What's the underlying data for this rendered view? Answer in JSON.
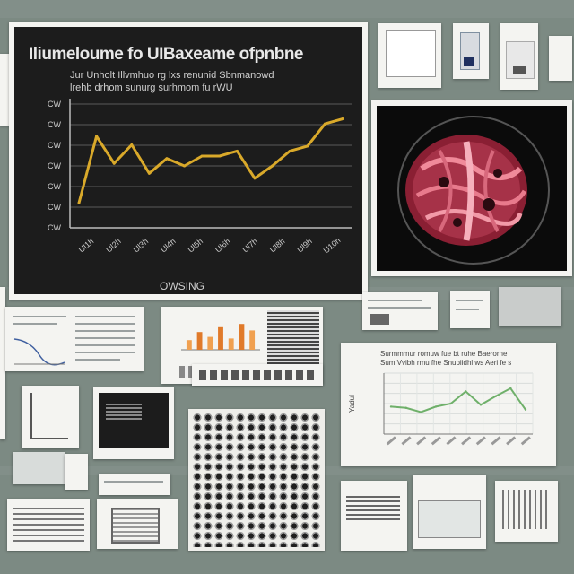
{
  "main_chart": {
    "title": "Iliumeloume fo UIBaxeame ofpnbne",
    "subtitle_line1": "Jur Unholt Illvmhuo rg lxs renunid Sbnmanowd",
    "subtitle_line2": "lrehb drhom sunurg surhmom fu rWU",
    "y_ticks": [
      "CW",
      "CW",
      "CW",
      "CW",
      "CW",
      "CW",
      "CW"
    ],
    "x_ticks": [
      "Ul1h",
      "Ul2h",
      "Ul3h",
      "Ul4h",
      "Ul5h",
      "Ul6h",
      "Ul7h",
      "Ul8h",
      "Ul9h",
      "U10h"
    ],
    "xlabel": "OWSING",
    "line_color": "#d9a92a"
  },
  "chart_data": [
    {
      "type": "line",
      "title": "Iliumeloume fo UIBaxeame ofpnbne",
      "xlabel": "OWSING",
      "ylabel": "",
      "x": [
        1,
        2,
        3,
        4,
        5,
        6,
        7,
        8,
        9,
        10,
        11,
        12,
        13,
        14,
        15,
        16
      ],
      "series": [
        {
          "values": [
            20,
            74,
            52,
            67,
            44,
            56,
            50,
            58,
            58,
            62,
            40,
            50,
            62,
            66,
            84,
            88
          ]
        }
      ],
      "ylim": [
        0,
        100
      ],
      "grid": true
    },
    {
      "type": "line",
      "title": "",
      "xlabel": "",
      "ylabel": "",
      "x": [
        1,
        2,
        3,
        4,
        5,
        6,
        7,
        8,
        9,
        10
      ],
      "series": [
        {
          "values": [
            45,
            43,
            36,
            45,
            50,
            70,
            48,
            62,
            75,
            40
          ]
        }
      ],
      "ylim": [
        0,
        100
      ],
      "grid": true
    },
    {
      "type": "bar",
      "title": "",
      "categories": [
        "a",
        "b",
        "c",
        "d",
        "e",
        "f",
        "g"
      ],
      "values": [
        30,
        55,
        40,
        70,
        35,
        80,
        60
      ],
      "ylim": [
        0,
        100
      ]
    }
  ],
  "right_chart": {
    "title_line1": "Surmmmur romuw fue bt ruhe Baerorne",
    "title_line2": "Sum Vvibh rmu fhe Snupiidhl ws Aeri fe s",
    "ylabel": "Yadul",
    "line_color": "#6fb06a"
  },
  "colors": {
    "wall": "#7c8a83",
    "chart_bg": "#1c1c1c",
    "tissue": "#c0405a"
  }
}
